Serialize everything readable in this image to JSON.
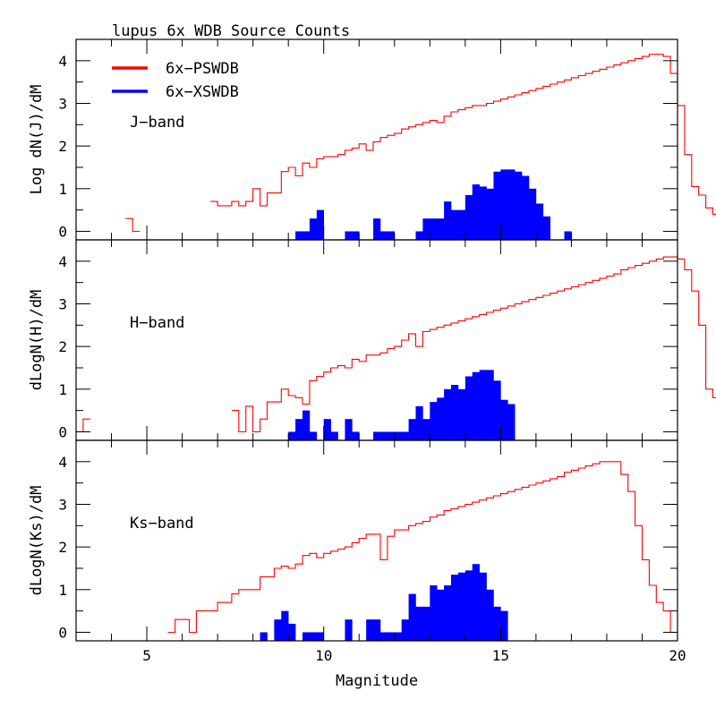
{
  "chart_data": {
    "type": "histogram",
    "title": "lupus  6x WDB Source Counts",
    "xlabel": "Magnitude",
    "xlim": [
      3,
      20
    ],
    "ylim": [
      -0.2,
      4.5
    ],
    "bin_width": 0.2,
    "x_ticks": [
      5,
      10,
      15,
      20
    ],
    "y_ticks": [
      0,
      1,
      2,
      3,
      4
    ],
    "legend": [
      {
        "label": "6x−PSWDB",
        "color": "#ff0000",
        "style": "outline histogram"
      },
      {
        "label": "6x−XSWDB",
        "color": "#0000ff",
        "style": "filled histogram"
      }
    ],
    "panels": [
      {
        "name": "J",
        "band_label": "J−band",
        "ylabel": "Log dN(J)/dM",
        "pswdb": {
          "start": 4.4,
          "values": [
            0.3,
            0.0,
            null,
            null,
            null,
            null,
            null,
            null,
            null,
            null,
            null,
            null,
            0.7,
            0.6,
            0.6,
            0.7,
            0.6,
            0.7,
            1.0,
            0.6,
            0.9,
            0.9,
            1.4,
            1.5,
            1.3,
            1.6,
            1.5,
            1.7,
            1.75,
            1.75,
            1.8,
            1.9,
            1.95,
            2.05,
            1.9,
            2.1,
            2.2,
            2.25,
            2.3,
            2.4,
            2.45,
            2.5,
            2.55,
            2.6,
            2.55,
            2.7,
            2.8,
            2.85,
            2.9,
            2.95,
            2.95,
            3.0,
            3.05,
            3.1,
            3.15,
            3.2,
            3.25,
            3.3,
            3.35,
            3.4,
            3.45,
            3.5,
            3.55,
            3.6,
            3.65,
            3.7,
            3.75,
            3.8,
            3.85,
            3.9,
            3.95,
            4.0,
            4.05,
            4.1,
            4.15,
            4.15,
            4.1,
            3.7,
            2.95,
            1.8,
            1.05,
            0.85,
            0.55,
            0.4,
            0.25,
            0.0,
            0.0,
            0.0,
            0.0
          ]
        },
        "xswdb": {
          "start": 9.2,
          "values": [
            0.0,
            0.0,
            0.3,
            0.5,
            null,
            null,
            null,
            0.0,
            0.0,
            null,
            null,
            0.3,
            0.0,
            0.0,
            null,
            null,
            null,
            0.0,
            0.3,
            0.3,
            0.3,
            0.7,
            0.5,
            0.5,
            0.85,
            1.1,
            1.05,
            1.0,
            1.4,
            1.45,
            1.45,
            1.4,
            1.3,
            1.0,
            0.65,
            0.35,
            null,
            null,
            0.0
          ]
        }
      },
      {
        "name": "H",
        "band_label": "H−band",
        "ylabel": "dLogN(H)/dM",
        "pswdb": {
          "start": 3.0,
          "values": [
            0.0,
            0.3,
            null,
            null,
            null,
            null,
            null,
            null,
            null,
            null,
            null,
            null,
            null,
            null,
            null,
            null,
            null,
            null,
            null,
            null,
            null,
            null,
            0.5,
            0.0,
            0.6,
            0.0,
            0.3,
            0.7,
            0.7,
            1.0,
            0.85,
            0.8,
            0.65,
            1.2,
            1.3,
            1.4,
            1.5,
            1.55,
            1.5,
            1.7,
            1.65,
            1.8,
            1.8,
            1.85,
            1.95,
            2.0,
            2.15,
            2.3,
            2.0,
            2.35,
            2.4,
            2.45,
            2.5,
            2.55,
            2.6,
            2.65,
            2.7,
            2.75,
            2.8,
            2.85,
            2.9,
            2.95,
            3.0,
            3.05,
            3.1,
            3.15,
            3.2,
            3.25,
            3.3,
            3.35,
            3.4,
            3.45,
            3.5,
            3.55,
            3.6,
            3.65,
            3.7,
            3.8,
            3.85,
            3.9,
            3.95,
            4.0,
            4.05,
            4.1,
            4.1,
            4.05,
            3.8,
            3.3,
            2.5,
            1.0,
            0.8,
            0.3,
            0.3,
            null,
            0.3,
            0.3,
            0.0,
            null,
            0.3,
            0.0,
            0.0,
            0.0,
            0.0,
            0.0
          ]
        },
        "xswdb": {
          "start": 9.0,
          "values": [
            0.0,
            0.3,
            0.5,
            0.0,
            null,
            0.3,
            0.0,
            null,
            0.3,
            0.0,
            null,
            null,
            0.0,
            0.0,
            0.0,
            0.0,
            0.0,
            0.3,
            0.6,
            0.3,
            0.7,
            0.8,
            1.0,
            1.1,
            1.0,
            1.3,
            1.4,
            1.45,
            1.45,
            1.2,
            0.75,
            0.65
          ]
        }
      },
      {
        "name": "Ks",
        "band_label": "Ks−band",
        "ylabel": "dLogN(Ks)/dM",
        "pswdb": {
          "start": 3.0,
          "values": [
            0.0,
            null,
            null,
            null,
            null,
            null,
            null,
            null,
            null,
            null,
            null,
            null,
            null,
            0.0,
            0.3,
            0.3,
            0.0,
            0.5,
            0.5,
            0.5,
            0.7,
            0.7,
            0.9,
            1.0,
            1.0,
            1.0,
            1.3,
            1.3,
            1.5,
            1.55,
            1.5,
            1.6,
            1.8,
            1.85,
            1.75,
            1.85,
            1.9,
            1.95,
            2.0,
            2.1,
            2.2,
            2.3,
            2.3,
            1.7,
            2.25,
            2.4,
            2.4,
            2.5,
            2.55,
            2.6,
            2.7,
            2.75,
            2.85,
            2.9,
            2.95,
            3.0,
            3.05,
            3.1,
            3.15,
            3.2,
            3.25,
            3.3,
            3.35,
            3.4,
            3.45,
            3.5,
            3.55,
            3.6,
            3.65,
            3.75,
            3.8,
            3.85,
            3.9,
            3.95,
            4.0,
            4.0,
            4.0,
            3.7,
            3.3,
            2.5,
            1.7,
            1.1,
            0.7,
            0.5,
            0.0,
            null,
            null,
            null,
            null,
            null,
            null,
            null,
            null,
            0.0
          ]
        },
        "xswdb": {
          "start": 8.2,
          "values": [
            0.0,
            null,
            0.3,
            0.5,
            0.2,
            null,
            0.0,
            0.0,
            0.0,
            null,
            null,
            null,
            0.3,
            null,
            null,
            0.3,
            0.3,
            0.0,
            0.0,
            0.0,
            0.3,
            0.9,
            0.6,
            0.6,
            1.1,
            1.0,
            1.1,
            1.35,
            1.4,
            1.45,
            1.6,
            1.4,
            1.0,
            0.6,
            0.5
          ]
        }
      }
    ]
  }
}
